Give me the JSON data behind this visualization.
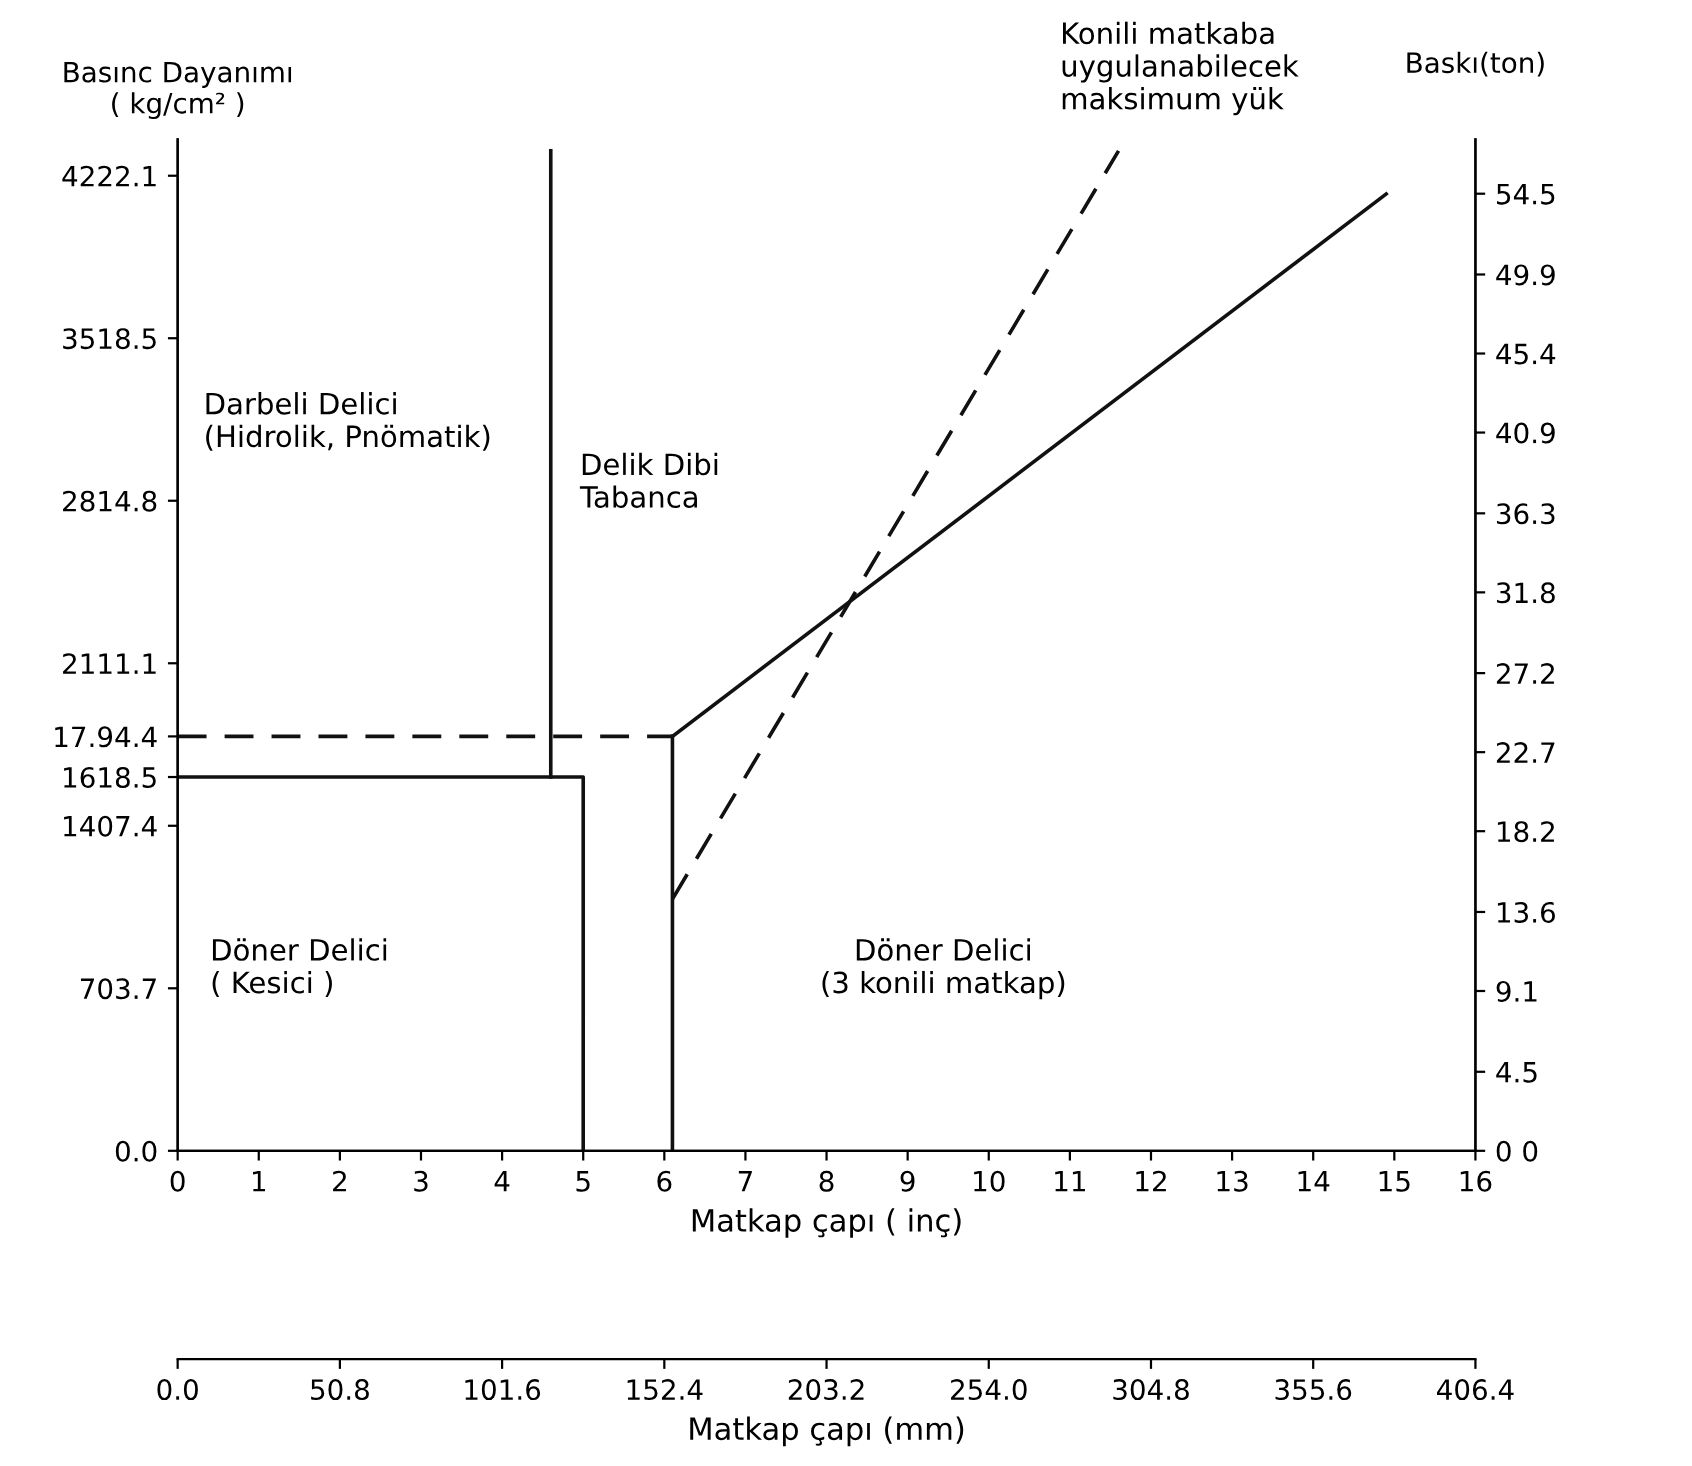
{
  "chart_data": {
    "type": "line",
    "ylabel": "Basınc Dayanımı\n( kg/cm² )",
    "y2label": "Baskı(ton)",
    "xlabel": "Matkap çapı ( inç)",
    "x2label": "Matkap çapı (mm)",
    "xlim": [
      0,
      16
    ],
    "xticks": [
      0,
      1,
      2,
      3,
      4,
      5,
      6,
      7,
      8,
      9,
      10,
      11,
      12,
      13,
      14,
      15,
      16
    ],
    "x2lim": [
      0,
      406.4
    ],
    "x2ticks": [
      {
        "value": 0,
        "label": "0.0"
      },
      50.8,
      101.6,
      152.4,
      203.2,
      {
        "value": 254.0,
        "label": "254.0"
      },
      304.8,
      355.6,
      406.4
    ],
    "ylim": [
      0,
      4380
    ],
    "yticks": [
      {
        "value": 0,
        "label": "0.0"
      },
      703.7,
      1407.4,
      1618.5,
      {
        "value": 1794.4,
        "label": "17.94.4"
      },
      2111.1,
      2814.8,
      3518.5,
      4222.1
    ],
    "y2lim": [
      0,
      57.6
    ],
    "y2ticks": [
      {
        "value": 0,
        "label": "0 0"
      },
      4.5,
      9.1,
      13.6,
      18.2,
      22.7,
      27.2,
      31.8,
      36.3,
      40.9,
      45.4,
      49.9,
      54.5
    ],
    "grid": false,
    "legend": false,
    "marker": "none",
    "series": [
      {
        "color": "#111111",
        "line_style": "solid",
        "x": [
          4.6,
          4.6
        ],
        "values": [
          1618.5,
          4330
        ]
      },
      {
        "color": "#111111",
        "line_style": "solid",
        "x": [
          0,
          5.0,
          5.0
        ],
        "values": [
          1618.5,
          1618.5,
          0
        ]
      },
      {
        "color": "#111111",
        "line_style": "dashed",
        "x": [
          0,
          6.1
        ],
        "values": [
          1794.4,
          1794.4
        ]
      },
      {
        "color": "#111111",
        "line_style": "solid",
        "x": [
          6.1,
          6.1
        ],
        "values": [
          0,
          1794.4
        ]
      },
      {
        "color": "#111111",
        "line_style": "solid",
        "x": [
          6.1,
          14.9
        ],
        "values": [
          1794.4,
          4143
        ]
      },
      {
        "color": "#111111",
        "line_style": "dashed",
        "x": [
          6.1,
          11.6
        ],
        "values": [
          1090,
          4330
        ]
      }
    ],
    "annotations": [
      "Darbeli Delici\n(Hidrolik, Pnömatik)",
      "Delik Dibi\nTabanca",
      "Döner Delici\n( Kesici )",
      "Döner Delici\n(3 konili matkap)",
      "Konili matkaba\nuygulanabilecek\nmaksimum yük"
    ]
  }
}
